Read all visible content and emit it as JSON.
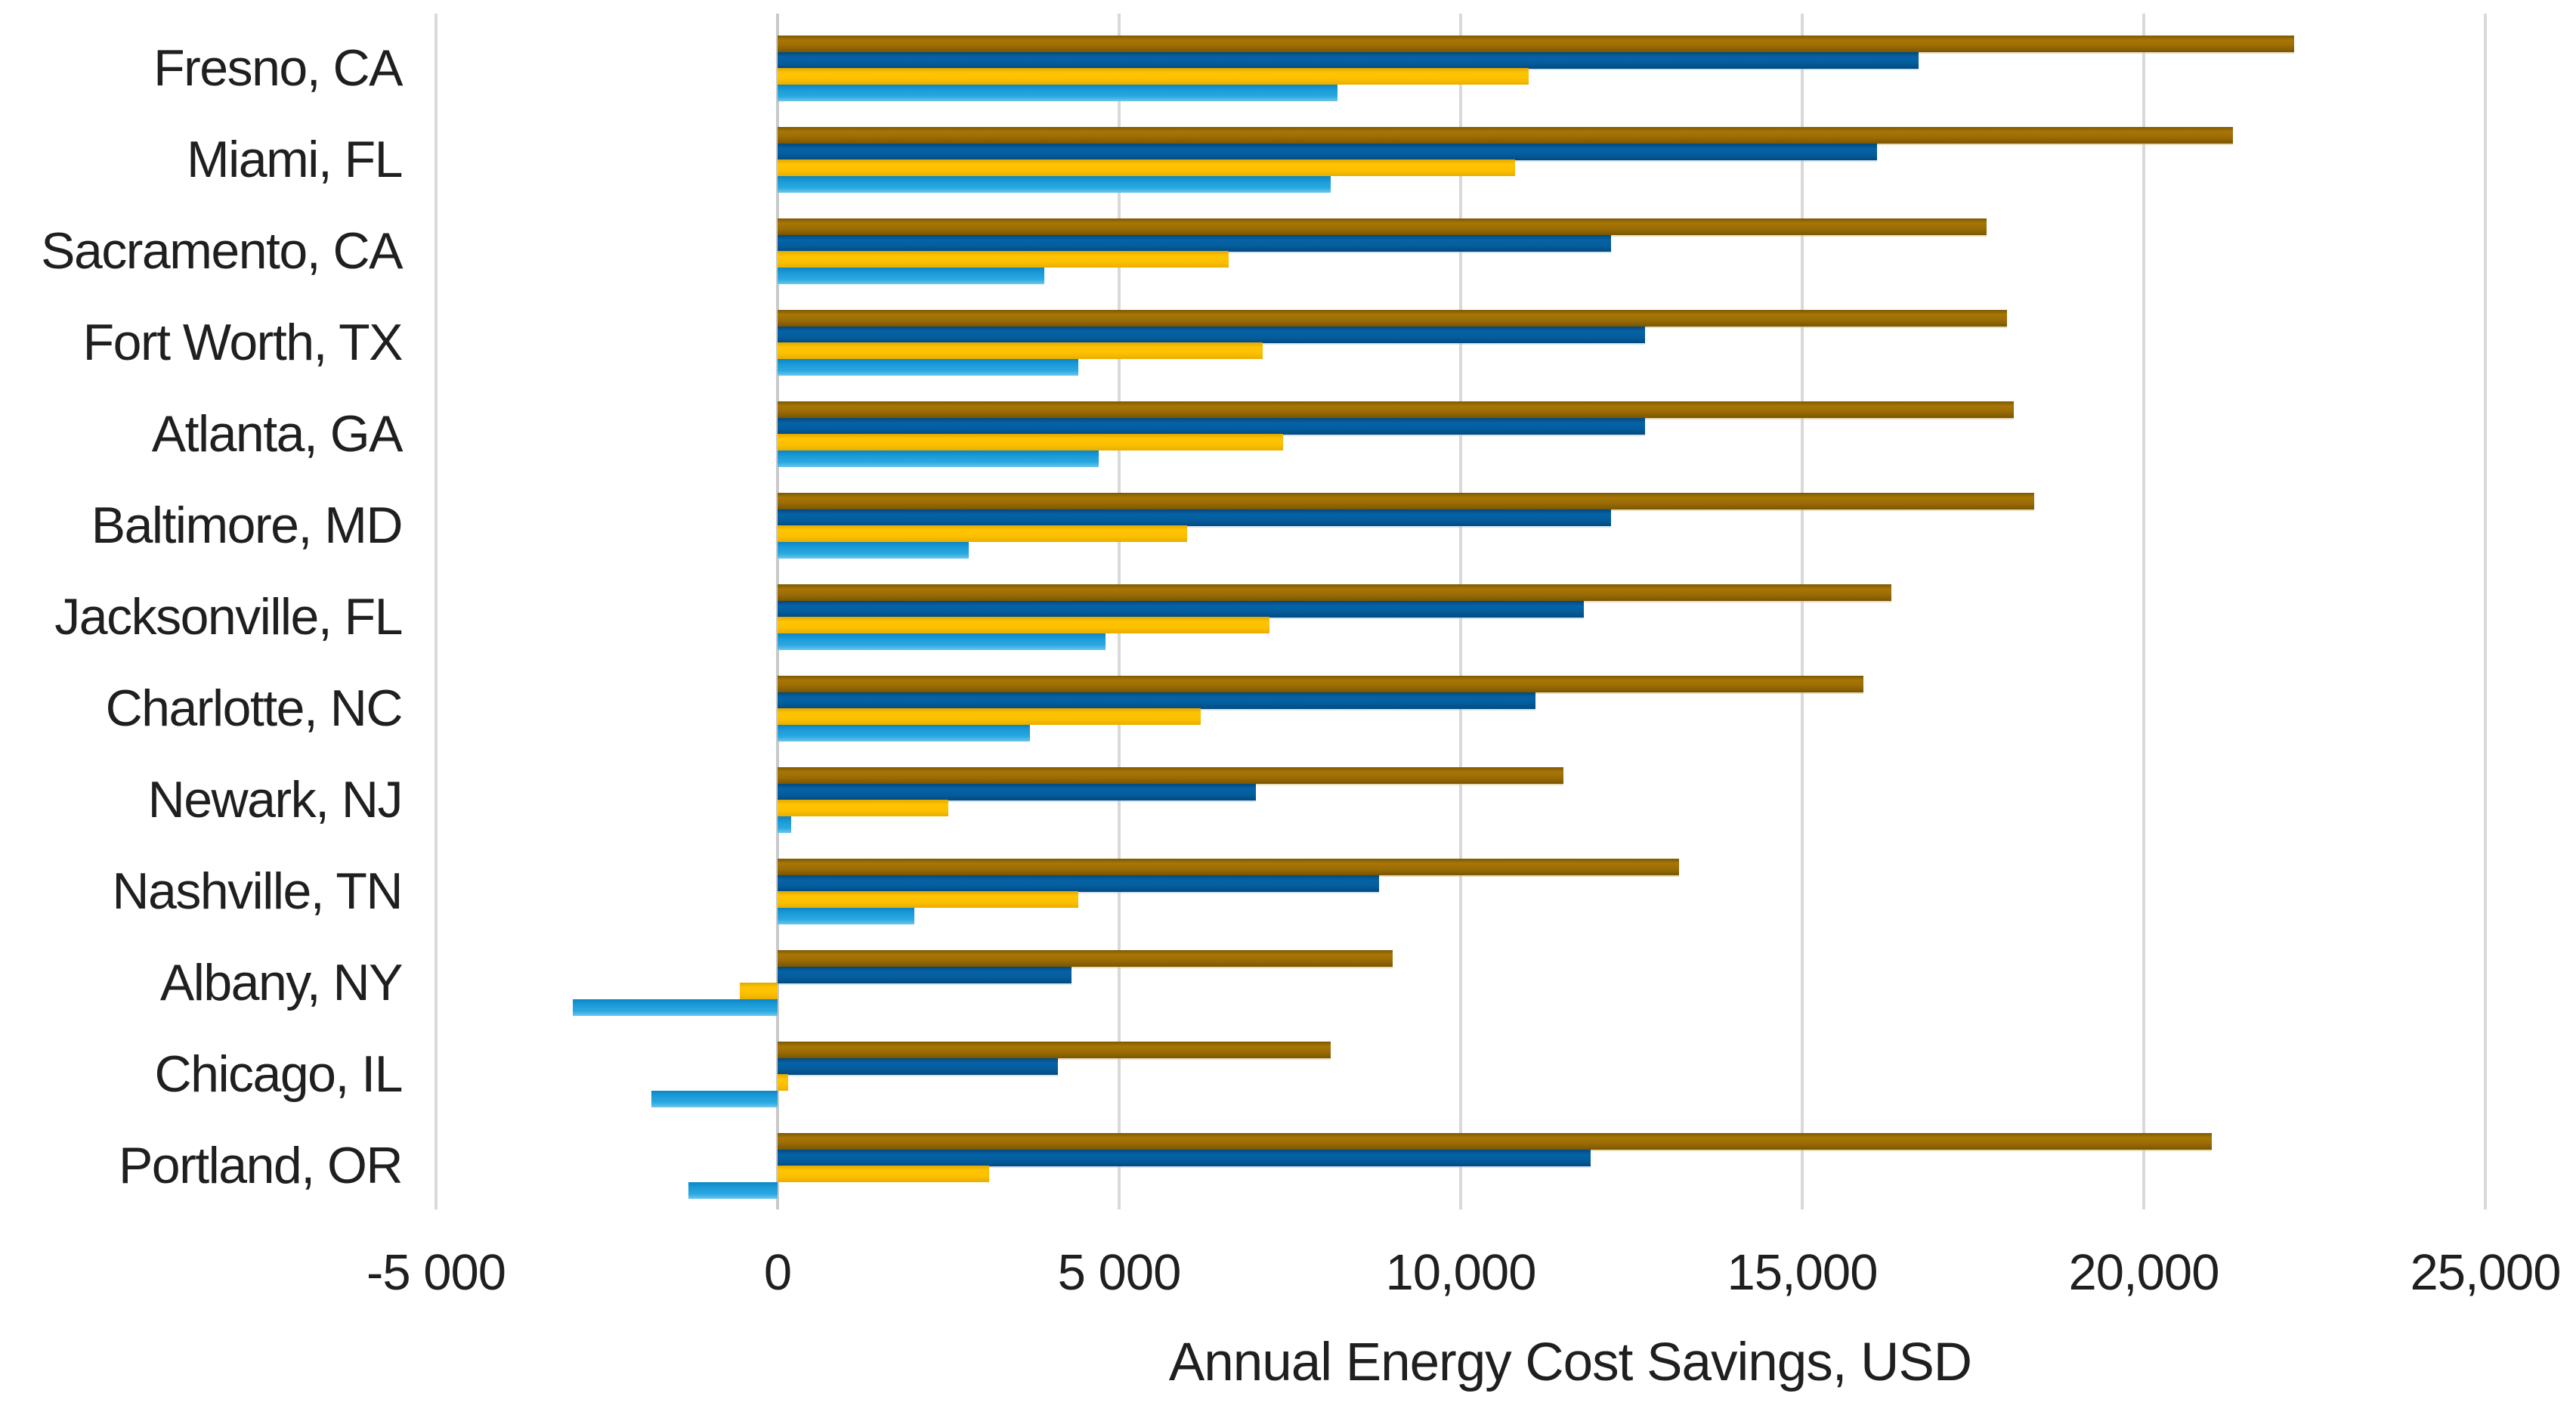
{
  "chart_data": {
    "type": "bar",
    "orientation": "horizontal",
    "title": "",
    "xlabel": "Annual Energy Cost Savings, USD",
    "ylabel": "",
    "xlim": [
      -5000,
      25000
    ],
    "grid": "vertical-only",
    "legend": "none",
    "x_ticks": [
      {
        "value": -5000,
        "label": "-5 000"
      },
      {
        "value": 0,
        "label": "0"
      },
      {
        "value": 5000,
        "label": "5 000"
      },
      {
        "value": 10000,
        "label": "10,000"
      },
      {
        "value": 15000,
        "label": "15,000"
      },
      {
        "value": 20000,
        "label": "20,000"
      },
      {
        "value": 25000,
        "label": "25,000"
      }
    ],
    "categories": [
      "Fresno, CA",
      "Miami, FL",
      "Sacramento, CA",
      "Fort Worth, TX",
      "Atlanta, GA",
      "Baltimore, MD",
      "Jacksonville, FL",
      "Charlotte, NC",
      "Newark, NJ",
      "Nashville, TN",
      "Albany, NY",
      "Chicago, IL",
      "Portland, OR"
    ],
    "series": [
      {
        "name": "dark-gold-bar",
        "color": "#9A6C05",
        "values": [
          22200,
          21300,
          17700,
          18000,
          18100,
          18400,
          16300,
          15900,
          11500,
          13200,
          9000,
          8100,
          21000
        ]
      },
      {
        "name": "dark-blue-bar",
        "color": "#045D9C",
        "values": [
          16700,
          16100,
          12200,
          12700,
          12700,
          12200,
          11800,
          11100,
          7000,
          8800,
          4300,
          4100,
          11900
        ]
      },
      {
        "name": "gold-bar",
        "color": "#FFC000",
        "values": [
          11000,
          10800,
          6600,
          7100,
          7400,
          6000,
          7200,
          6200,
          2500,
          4400,
          -550,
          150,
          3100
        ]
      },
      {
        "name": "light-blue-bar",
        "color": "#1D9ED9",
        "values": [
          8200,
          8100,
          3900,
          4400,
          4700,
          2800,
          4800,
          3700,
          200,
          2000,
          -3000,
          -1850,
          -1300
        ]
      }
    ],
    "colors": {
      "gridline": "#D9D9D9",
      "text": "#1F1F1F",
      "background": "#FFFFFF"
    }
  }
}
